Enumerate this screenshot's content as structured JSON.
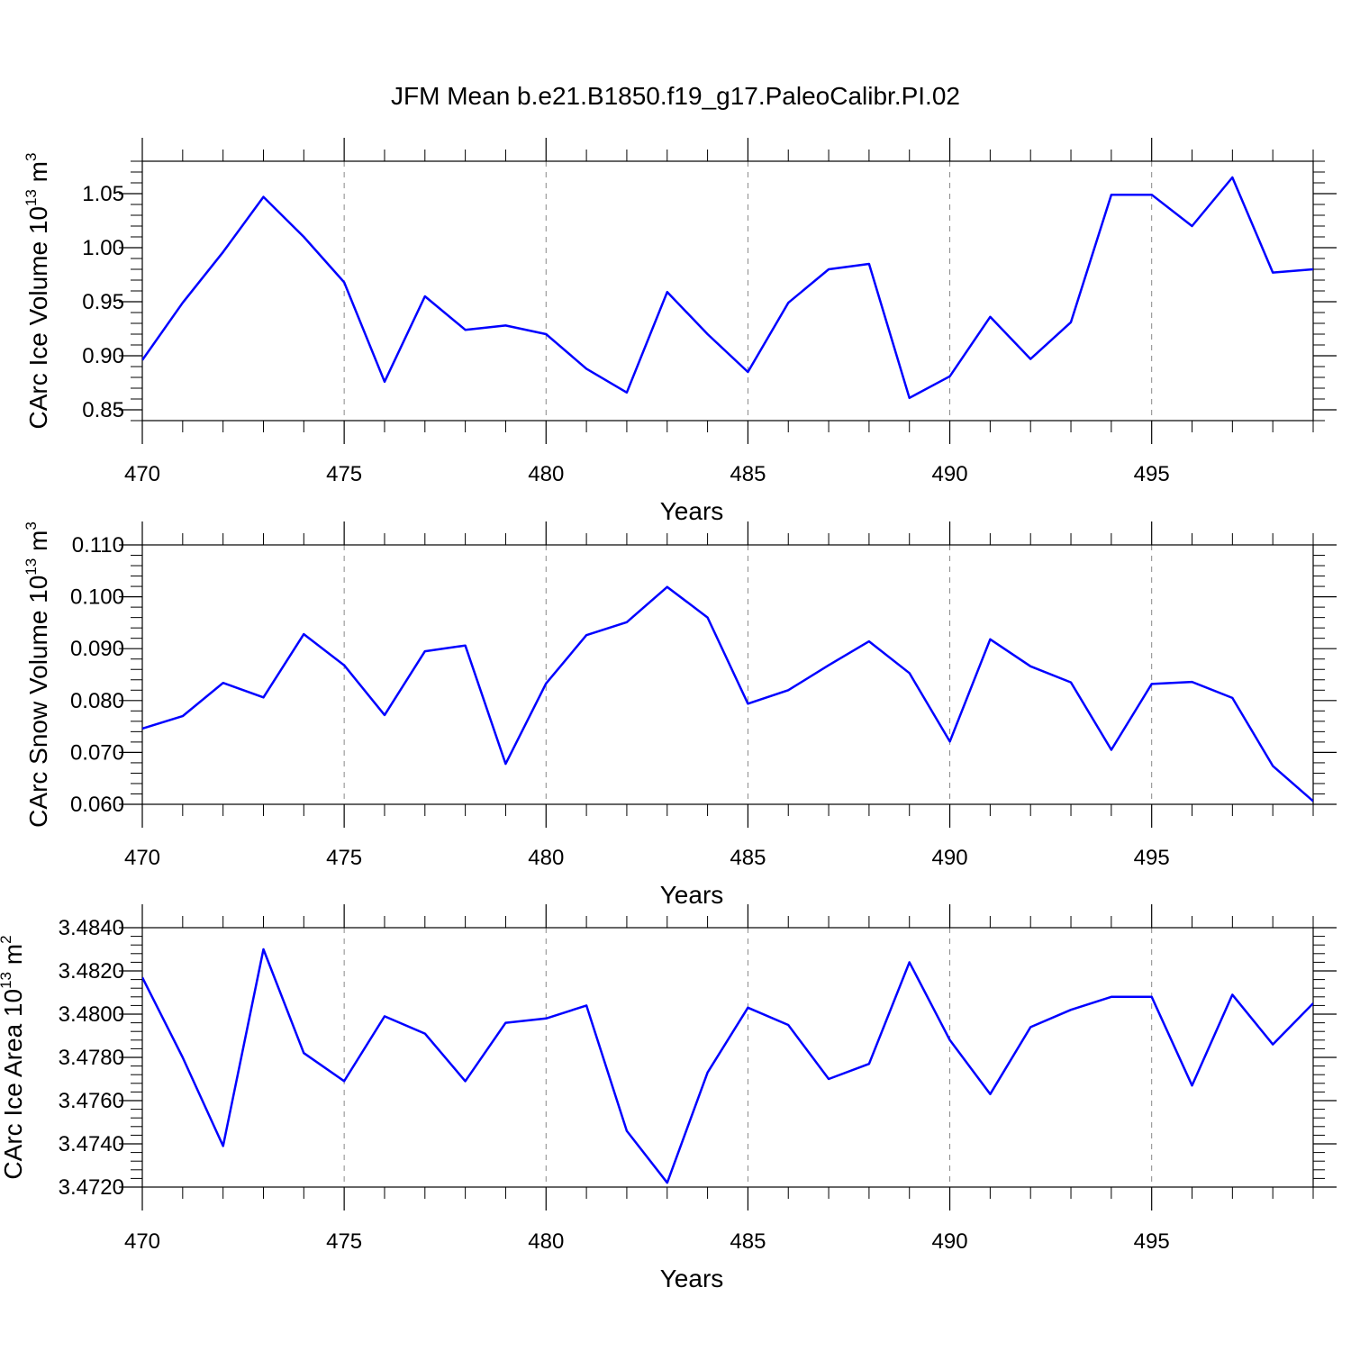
{
  "figure_title": "JFM Mean b.e21.B1850.f19_g17.PaleoCalibr.PI.02",
  "line_color": "#0000ff",
  "chart_data": [
    {
      "type": "line",
      "xlabel": "Years",
      "ylabel": "CArc Ice Volume 10",
      "ylabel_exp": "13",
      "ylabel_unit": " m",
      "ylabel_unit_exp": "3",
      "xlim": [
        470,
        499
      ],
      "ylim": [
        0.84,
        1.08
      ],
      "xticks": [
        470,
        475,
        480,
        485,
        490,
        495
      ],
      "yticks": [
        "0.85",
        "0.90",
        "0.95",
        "1.00",
        "1.05"
      ],
      "x": [
        470,
        471,
        472,
        473,
        474,
        475,
        476,
        477,
        478,
        479,
        480,
        481,
        482,
        483,
        484,
        485,
        486,
        487,
        488,
        489,
        490,
        491,
        492,
        493,
        494,
        495,
        496,
        497,
        498,
        499
      ],
      "values": [
        0.896,
        0.949,
        0.996,
        1.047,
        1.01,
        0.968,
        0.876,
        0.955,
        0.924,
        0.928,
        0.92,
        0.888,
        0.866,
        0.959,
        0.92,
        0.885,
        0.949,
        0.98,
        0.985,
        0.861,
        0.881,
        0.936,
        0.897,
        0.931,
        1.049,
        1.049,
        1.02,
        1.065,
        0.977,
        0.98
      ],
      "grid": "vertical-dashed"
    },
    {
      "type": "line",
      "xlabel": "Years",
      "ylabel": "CArc Snow Volume 10",
      "ylabel_exp": "13",
      "ylabel_unit": " m",
      "ylabel_unit_exp": "3",
      "xlim": [
        470,
        499
      ],
      "ylim": [
        0.06,
        0.11
      ],
      "xticks": [
        470,
        475,
        480,
        485,
        490,
        495
      ],
      "yticks": [
        "0.060",
        "0.070",
        "0.080",
        "0.090",
        "0.100",
        "0.110"
      ],
      "x": [
        470,
        471,
        472,
        473,
        474,
        475,
        476,
        477,
        478,
        479,
        480,
        481,
        482,
        483,
        484,
        485,
        486,
        487,
        488,
        489,
        490,
        491,
        492,
        493,
        494,
        495,
        496,
        497,
        498,
        499
      ],
      "values": [
        0.0746,
        0.077,
        0.0834,
        0.0806,
        0.0928,
        0.0868,
        0.0772,
        0.0895,
        0.0906,
        0.0678,
        0.0833,
        0.0926,
        0.0951,
        0.1019,
        0.096,
        0.0794,
        0.082,
        0.0868,
        0.0914,
        0.0853,
        0.0721,
        0.0918,
        0.0866,
        0.0835,
        0.0705,
        0.0832,
        0.0836,
        0.0805,
        0.0674,
        0.0606
      ],
      "grid": "vertical-dashed"
    },
    {
      "type": "line",
      "xlabel": "Years",
      "ylabel": "CArc Ice Area 10",
      "ylabel_exp": "13",
      "ylabel_unit": " m",
      "ylabel_unit_exp": "2",
      "xlim": [
        470,
        499
      ],
      "ylim": [
        3.472,
        3.484
      ],
      "xticks": [
        470,
        475,
        480,
        485,
        490,
        495
      ],
      "yticks": [
        "3.4720",
        "3.4740",
        "3.4760",
        "3.4780",
        "3.4800",
        "3.4820",
        "3.4840"
      ],
      "x": [
        470,
        471,
        472,
        473,
        474,
        475,
        476,
        477,
        478,
        479,
        480,
        481,
        482,
        483,
        484,
        485,
        486,
        487,
        488,
        489,
        490,
        491,
        492,
        493,
        494,
        495,
        496,
        497,
        498,
        499
      ],
      "values": [
        3.4817,
        3.478,
        3.4739,
        3.483,
        3.4782,
        3.4769,
        3.4799,
        3.4791,
        3.4769,
        3.4796,
        3.4798,
        3.4804,
        3.4746,
        3.4722,
        3.4773,
        3.4803,
        3.4795,
        3.477,
        3.4777,
        3.4824,
        3.4788,
        3.4763,
        3.4794,
        3.4802,
        3.4808,
        3.4808,
        3.4767,
        3.4809,
        3.4786,
        3.4805
      ],
      "grid": "vertical-dashed"
    }
  ]
}
